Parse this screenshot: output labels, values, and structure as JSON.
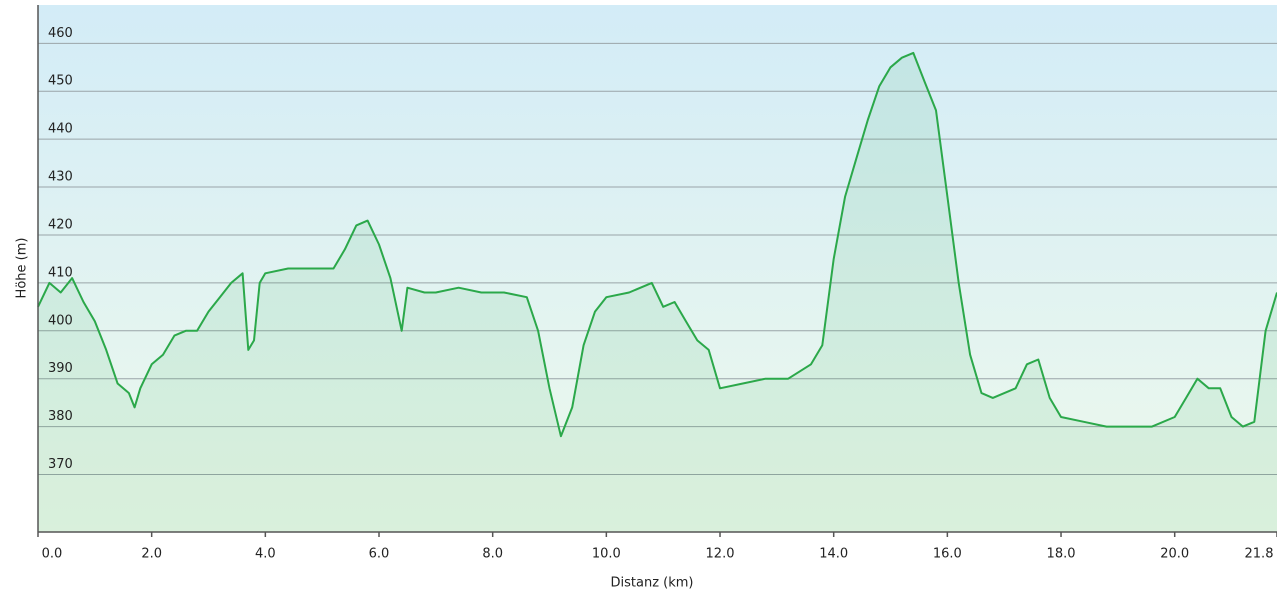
{
  "chart_data": {
    "type": "line",
    "xlabel": "Distanz  (km)",
    "ylabel": "Höhe (m)",
    "x": [
      0.0,
      0.2,
      0.4,
      0.6,
      0.8,
      1.0,
      1.2,
      1.4,
      1.6,
      1.7,
      1.8,
      2.0,
      2.2,
      2.4,
      2.6,
      2.8,
      3.0,
      3.2,
      3.4,
      3.6,
      3.7,
      3.8,
      3.9,
      4.0,
      4.4,
      4.8,
      5.2,
      5.4,
      5.6,
      5.8,
      6.0,
      6.2,
      6.4,
      6.5,
      6.8,
      7.0,
      7.4,
      7.8,
      8.2,
      8.6,
      8.8,
      9.0,
      9.2,
      9.4,
      9.6,
      9.8,
      10.0,
      10.4,
      10.8,
      11.0,
      11.2,
      11.4,
      11.6,
      11.8,
      12.0,
      12.4,
      12.8,
      13.2,
      13.6,
      13.8,
      14.0,
      14.2,
      14.4,
      14.6,
      14.8,
      15.0,
      15.2,
      15.4,
      15.6,
      15.8,
      16.0,
      16.2,
      16.4,
      16.6,
      16.8,
      17.2,
      17.4,
      17.6,
      17.8,
      18.0,
      18.4,
      18.8,
      19.2,
      19.6,
      20.0,
      20.2,
      20.4,
      20.6,
      20.8,
      21.0,
      21.2,
      21.4,
      21.6,
      21.8
    ],
    "series": [
      {
        "color": "#2ba84a",
        "values": [
          405,
          410,
          408,
          411,
          406,
          402,
          396,
          389,
          387,
          384,
          388,
          393,
          395,
          399,
          400,
          400,
          404,
          407,
          410,
          412,
          396,
          398,
          410,
          412,
          413,
          413,
          413,
          417,
          422,
          423,
          418,
          411,
          400,
          409,
          408,
          408,
          409,
          408,
          408,
          407,
          400,
          388,
          378,
          384,
          397,
          404,
          407,
          408,
          410,
          405,
          406,
          402,
          398,
          396,
          388,
          389,
          390,
          390,
          393,
          397,
          415,
          428,
          436,
          444,
          451,
          455,
          457,
          458,
          452,
          446,
          428,
          410,
          395,
          387,
          386,
          388,
          393,
          394,
          386,
          382,
          381,
          380,
          380,
          380,
          382,
          386,
          390,
          388,
          388,
          382,
          380,
          381,
          400,
          408
        ]
      }
    ],
    "xlim": [
      0,
      21.8
    ],
    "ylim": [
      358,
      468
    ],
    "xticks": [
      {
        "value": 0,
        "label": "0.0"
      },
      {
        "value": 2,
        "label": "2.0"
      },
      {
        "value": 4,
        "label": "4.0"
      },
      {
        "value": 6,
        "label": "6.0"
      },
      {
        "value": 8,
        "label": "8.0"
      },
      {
        "value": 10,
        "label": "10.0"
      },
      {
        "value": 12,
        "label": "12.0"
      },
      {
        "value": 14,
        "label": "14.0"
      },
      {
        "value": 16,
        "label": "16.0"
      },
      {
        "value": 18,
        "label": "18.0"
      },
      {
        "value": 20,
        "label": "20.0"
      },
      21.8
    ],
    "yticks": [
      370,
      380,
      390,
      400,
      410,
      420,
      430,
      440,
      450,
      460
    ],
    "grid": true
  }
}
